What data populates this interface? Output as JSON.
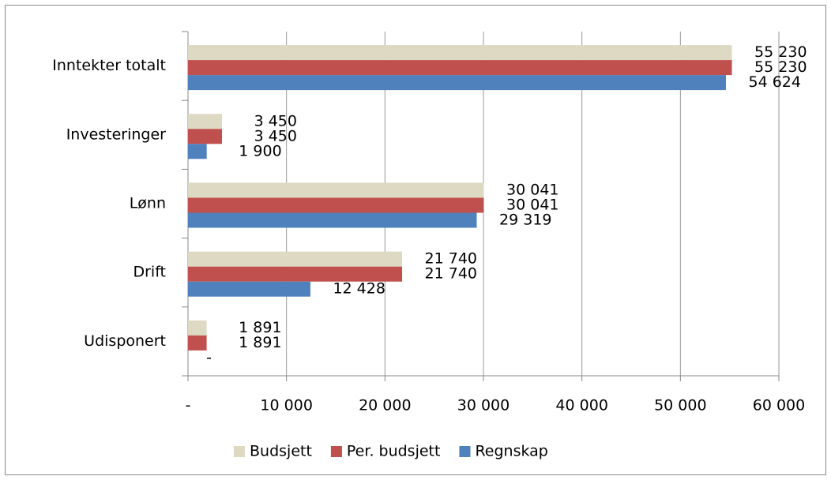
{
  "chart_data": {
    "type": "hbar",
    "categories": [
      "Inntekter totalt",
      "Investeringer",
      "Lønn",
      "Drift",
      "Udisponert"
    ],
    "series": [
      {
        "name": "Budsjett",
        "color": "#ddd9c3",
        "values": [
          55230,
          3450,
          30041,
          21740,
          1891
        ],
        "value_labels": [
          "55 230",
          "3 450",
          "30 041",
          "21 740",
          "1 891"
        ]
      },
      {
        "name": "Per. budsjett",
        "color": "#c0504d",
        "values": [
          55230,
          3450,
          30041,
          21740,
          1891
        ],
        "value_labels": [
          "55 230",
          "3 450",
          "30 041",
          "21 740",
          "1 891"
        ]
      },
      {
        "name": "Regnskap",
        "color": "#4f81bd",
        "values": [
          54624,
          1900,
          29319,
          12428,
          0
        ],
        "value_labels": [
          "54 624",
          "1 900",
          "29 319",
          "12 428",
          "-"
        ]
      }
    ],
    "xlim": [
      0,
      60000
    ],
    "xticks": [
      {
        "value": 0,
        "label": "-"
      },
      {
        "value": 10000,
        "label": "10 000"
      },
      {
        "value": 20000,
        "label": "20 000"
      },
      {
        "value": 30000,
        "label": "30 000"
      },
      {
        "value": 40000,
        "label": "40 000"
      },
      {
        "value": 50000,
        "label": "50 000"
      },
      {
        "value": 60000,
        "label": "60 000"
      }
    ],
    "grid": true,
    "legend": "bottom"
  }
}
